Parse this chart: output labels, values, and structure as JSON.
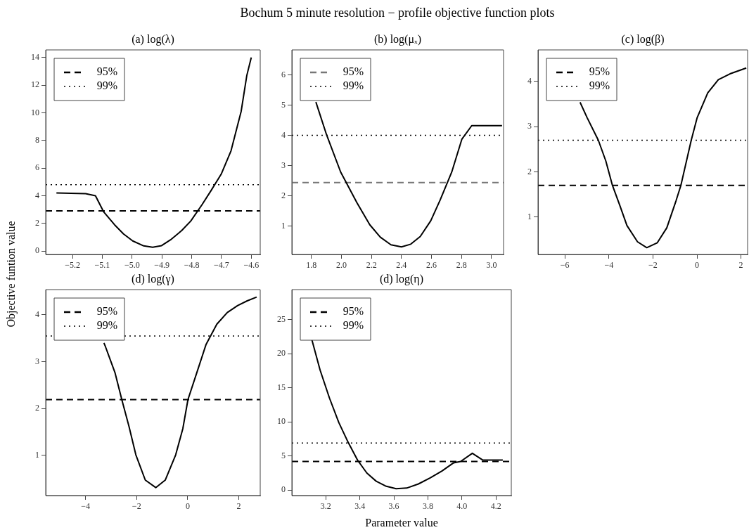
{
  "chart_data": [
    {
      "type": "line",
      "title": "(a)  log(λ)",
      "ylabel": "Objective funtion value",
      "annotations": [
        "Bochum 5 minute resolution − profile objective function plots"
      ],
      "x": [
        -5.254,
        -5.156,
        -5.123,
        -5.096,
        -5.059,
        -5.029,
        -4.998,
        -4.961,
        -4.931,
        -4.901,
        -4.871,
        -4.833,
        -4.803,
        -4.765,
        -4.735,
        -4.701,
        -4.668,
        -4.634,
        -4.615,
        -4.6
      ],
      "series": [
        {
          "color": "#000000",
          "values": [
            4.2,
            4.15,
            4.0,
            2.85,
            1.9,
            1.24,
            0.73,
            0.37,
            0.27,
            0.39,
            0.81,
            1.49,
            2.17,
            3.36,
            4.37,
            5.56,
            7.25,
            10.1,
            12.7,
            14.0
          ]
        },
        {
          "name": "95%",
          "type": "line",
          "line_style": "dashed",
          "color": "#000000",
          "x": [
            -5.29,
            -4.57
          ],
          "values": [
            2.9,
            2.9
          ]
        },
        {
          "name": "99%",
          "type": "line",
          "line_style": "dotted",
          "color": "#000000",
          "x": [
            -5.29,
            -4.57
          ],
          "values": [
            4.8,
            4.8
          ]
        }
      ],
      "xlim": [
        -5.29,
        -4.57
      ],
      "ylim": [
        -0.25,
        14.55
      ],
      "xticks": [
        {
          "value": -5.2,
          "label": "−5.2"
        },
        {
          "value": -5.1,
          "label": "−5.1"
        },
        {
          "value": -5.0,
          "label": "−5.0"
        },
        {
          "value": -4.9,
          "label": "−4.9"
        },
        {
          "value": -4.8,
          "label": "−4.8"
        },
        {
          "value": -4.7,
          "label": "−4.7"
        },
        {
          "value": -4.6,
          "label": "−4.6"
        }
      ],
      "yticks": [
        0,
        2,
        4,
        6,
        8,
        10,
        12,
        14
      ],
      "legend": "top left"
    },
    {
      "type": "line",
      "title": "(b)  log(μₓ)",
      "x": [
        1.83,
        1.901,
        1.995,
        2.103,
        2.189,
        2.259,
        2.33,
        2.4,
        2.462,
        2.525,
        2.595,
        2.657,
        2.735,
        2.802,
        2.868,
        3.07
      ],
      "series": [
        {
          "color": "#000000",
          "values": [
            5.1,
            4.02,
            2.79,
            1.78,
            1.05,
            0.64,
            0.39,
            0.32,
            0.41,
            0.66,
            1.18,
            1.86,
            2.79,
            3.87,
            4.32,
            4.32
          ]
        },
        {
          "name": "95%",
          "type": "line",
          "line_style": "dashed",
          "color": "#777777",
          "x": [
            1.67,
            3.08
          ],
          "values": [
            2.44,
            2.44
          ]
        },
        {
          "name": "99%",
          "type": "line",
          "line_style": "dotted",
          "color": "#000000",
          "x": [
            1.67,
            3.08
          ],
          "values": [
            4.0,
            4.0
          ]
        }
      ],
      "xlim": [
        1.67,
        3.08
      ],
      "ylim": [
        0.07,
        6.82
      ],
      "xticks": [
        1.8,
        {
          "value": 2,
          "label": "2.0"
        },
        2.2,
        2.4,
        2.6,
        2.8,
        {
          "value": 3,
          "label": "3.0"
        }
      ],
      "yticks": [
        1,
        2,
        3,
        4,
        5,
        6
      ],
      "legend": "top left"
    },
    {
      "type": "line",
      "title": "(c)  log(β)",
      "x": [
        -5.31,
        -4.99,
        -4.48,
        -4.14,
        -3.84,
        -3.5,
        -3.18,
        -2.7,
        -2.28,
        -1.8,
        -1.37,
        -0.95,
        -0.73,
        -0.26,
        0.01,
        0.49,
        0.97,
        1.5,
        2.24
      ],
      "series": [
        {
          "color": "#000000",
          "values": [
            3.54,
            3.2,
            2.7,
            2.24,
            1.7,
            1.25,
            0.81,
            0.45,
            0.32,
            0.43,
            0.76,
            1.36,
            1.7,
            2.7,
            3.2,
            3.75,
            4.04,
            4.17,
            4.3
          ]
        },
        {
          "name": "95%",
          "type": "line",
          "line_style": "dashed",
          "color": "#000000",
          "x": [
            -7.22,
            2.3
          ],
          "values": [
            1.7,
            1.7
          ]
        },
        {
          "name": "99%",
          "type": "line",
          "line_style": "dotted",
          "color": "#000000",
          "x": [
            -7.22,
            2.3
          ],
          "values": [
            2.7,
            2.7
          ]
        }
      ],
      "xlim": [
        -7.22,
        2.3
      ],
      "ylim": [
        0.17,
        4.7
      ],
      "xticks": [
        -6,
        -4,
        -2,
        0,
        2
      ],
      "yticks": [
        1,
        2,
        3,
        4
      ],
      "legend": "top left"
    },
    {
      "type": "line",
      "title": "(d)  log(γ)",
      "x": [
        -3.28,
        -3.22,
        -2.85,
        -2.58,
        -2.3,
        -2.03,
        -1.66,
        -1.25,
        -0.88,
        -0.47,
        -0.19,
        0.01,
        0.36,
        0.72,
        1.14,
        1.55,
        1.96,
        2.33,
        2.7
      ],
      "series": [
        {
          "color": "#000000",
          "values": [
            3.4,
            3.32,
            2.77,
            2.19,
            1.62,
            1.01,
            0.47,
            0.31,
            0.47,
            1.01,
            1.57,
            2.19,
            2.77,
            3.37,
            3.8,
            4.05,
            4.2,
            4.3,
            4.38
          ]
        },
        {
          "name": "95%",
          "type": "line",
          "line_style": "dashed",
          "color": "#000000",
          "x": [
            -5.56,
            2.84
          ],
          "values": [
            2.19,
            2.19
          ]
        },
        {
          "name": "99%",
          "type": "line",
          "line_style": "dotted",
          "color": "#000000",
          "x": [
            -5.56,
            2.84
          ],
          "values": [
            3.55,
            3.55
          ]
        }
      ],
      "xlim": [
        -5.56,
        2.84
      ],
      "ylim": [
        0.14,
        4.54
      ],
      "xticks": [
        -4,
        -2,
        0,
        2
      ],
      "yticks": [
        1,
        2,
        3,
        4
      ],
      "legend": "top left"
    },
    {
      "type": "line",
      "title": "(d)  log(η)",
      "xlabel": "Parameter value",
      "x": [
        3.117,
        3.166,
        3.221,
        3.276,
        3.331,
        3.386,
        3.441,
        3.496,
        3.551,
        3.613,
        3.675,
        3.744,
        3.813,
        3.882,
        3.951,
        3.992,
        4.061,
        4.123,
        4.24
      ],
      "series": [
        {
          "color": "#000000",
          "values": [
            22.1,
            17.6,
            13.5,
            9.9,
            7.0,
            4.4,
            2.5,
            1.3,
            0.6,
            0.2,
            0.3,
            0.9,
            1.8,
            2.8,
            4.0,
            4.2,
            5.4,
            4.4,
            4.4
          ]
        },
        {
          "name": "95%",
          "type": "line",
          "line_style": "dashed",
          "color": "#000000",
          "x": [
            3.0,
            4.29
          ],
          "values": [
            4.2,
            4.2
          ]
        },
        {
          "name": "99%",
          "type": "line",
          "line_style": "dotted",
          "color": "#000000",
          "x": [
            3.0,
            4.29
          ],
          "values": [
            6.9,
            6.9
          ]
        }
      ],
      "xlim": [
        3.0,
        4.29
      ],
      "ylim": [
        -0.8,
        29.4
      ],
      "xticks": [
        3.2,
        3.4,
        3.6,
        3.8,
        {
          "value": 4,
          "label": "4.0"
        },
        4.2
      ],
      "yticks": [
        0,
        5,
        10,
        15,
        20,
        25
      ],
      "legend": "top left"
    }
  ]
}
